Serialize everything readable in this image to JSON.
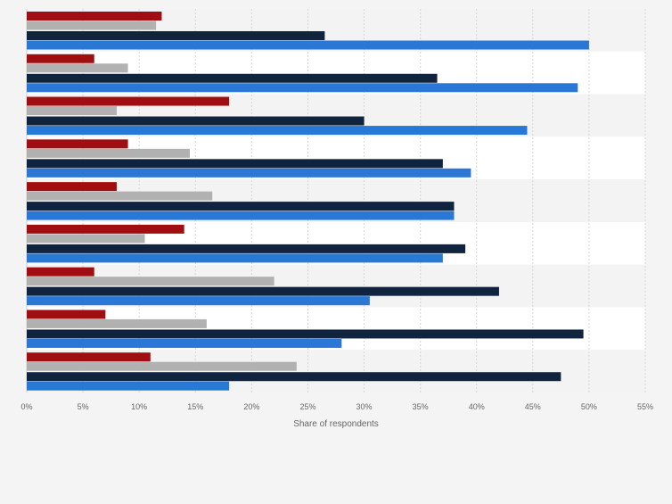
{
  "chart_data": {
    "type": "bar",
    "orientation": "horizontal",
    "categories": [
      "",
      "",
      "",
      "",
      "",
      "",
      "",
      "",
      ""
    ],
    "series": [
      {
        "color": "#a10e11",
        "values": [
          12,
          6,
          18,
          9,
          8,
          14,
          6,
          7,
          11
        ]
      },
      {
        "color": "#b1b1b1",
        "values": [
          11.5,
          9,
          8,
          14.5,
          16.5,
          10.5,
          22,
          16,
          24
        ]
      },
      {
        "color": "#10243f",
        "values": [
          26.5,
          36.5,
          30,
          37,
          38,
          39,
          42,
          49.5,
          47.5
        ]
      },
      {
        "color": "#2a78d6",
        "values": [
          50,
          49,
          44.5,
          39.5,
          38,
          37,
          30.5,
          28,
          18
        ]
      }
    ],
    "xlim": [
      0,
      55
    ],
    "ticks": [
      {
        "value": 0,
        "label": "0%"
      },
      {
        "value": 5,
        "label": "5%"
      },
      {
        "value": 10,
        "label": "10%"
      },
      {
        "value": 15,
        "label": "15%"
      },
      {
        "value": 20,
        "label": "20%"
      },
      {
        "value": 25,
        "label": "25%"
      },
      {
        "value": 30,
        "label": "30%"
      },
      {
        "value": 35,
        "label": "35%"
      },
      {
        "value": 40,
        "label": "40%"
      },
      {
        "value": 45,
        "label": "45%"
      },
      {
        "value": 50,
        "label": "50%"
      },
      {
        "value": 55,
        "label": "55%"
      }
    ],
    "xlabel": "Share of respondents",
    "ylabel": "",
    "grid": true,
    "legend": "none"
  }
}
